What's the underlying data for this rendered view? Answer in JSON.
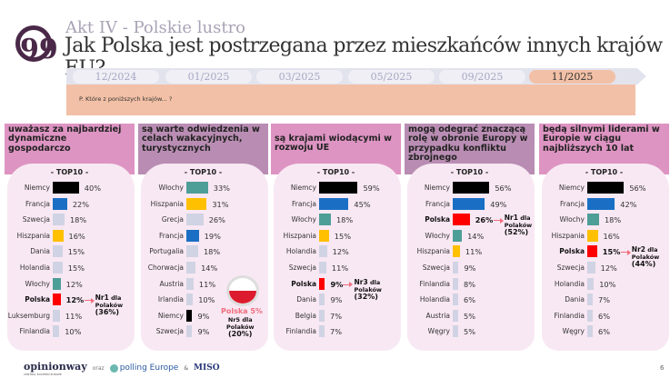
{
  "header": {
    "subtitle": "Akt IV - Polskie lustro",
    "title": "Jak Polska jest postrzegana przez mieszkańców innych krajów EU?"
  },
  "timeline": [
    "12/2024",
    "01/2025",
    "03/2025",
    "05/2025",
    "09/2025",
    "11/2025"
  ],
  "question": "P. Które z poniższych krajów... ?",
  "panels": [
    {
      "title": "uważasz za najbardziej dynamiczne gospodarczo",
      "top": "- TOP10 -",
      "rows": [
        [
          "Niemcy",
          "40%",
          40,
          "#000000"
        ],
        [
          "Francja",
          "22%",
          22,
          "#1a6fc4"
        ],
        [
          "Szwecja",
          "18%",
          18,
          "#d0d3e3"
        ],
        [
          "Hiszpania",
          "16%",
          16,
          "#ffc000"
        ],
        [
          "Dania",
          "15%",
          15,
          "#d0d3e3"
        ],
        [
          "Holandia",
          "15%",
          15,
          "#d0d3e3"
        ],
        [
          "Włochy",
          "12%",
          12,
          "#4e9e98"
        ],
        [
          "Polska",
          "12%",
          12,
          "#ff0000"
        ],
        [
          "Luksemburg",
          "11%",
          11,
          "#d0d3e3"
        ],
        [
          "Finlandia",
          "10%",
          10,
          "#d0d3e3"
        ]
      ],
      "ann": {
        "nr": "Nr1",
        "dla": "dla",
        "pol": "Polaków",
        "pct": "(36%)"
      }
    },
    {
      "title": "są warte odwiedzenia w celach wakacyjnych, turystycznych",
      "top": "- TOP10 -",
      "rows": [
        [
          "Włochy",
          "33%",
          33,
          "#4e9e98"
        ],
        [
          "Hiszpania",
          "31%",
          31,
          "#ffc000"
        ],
        [
          "Grecja",
          "26%",
          26,
          "#d0d3e3"
        ],
        [
          "Francja",
          "19%",
          19,
          "#1a6fc4"
        ],
        [
          "Portugalia",
          "18%",
          18,
          "#d0d3e3"
        ],
        [
          "Chorwacja",
          "14%",
          14,
          "#d0d3e3"
        ],
        [
          "Austria",
          "11%",
          11,
          "#d0d3e3"
        ],
        [
          "Irlandia",
          "10%",
          10,
          "#d0d3e3"
        ],
        [
          "Niemcy",
          "9%",
          9,
          "#000000"
        ],
        [
          "Szwecja",
          "9%",
          9,
          "#d0d3e3"
        ]
      ],
      "polska": "Polska 5%",
      "ann": {
        "nr": "Nr5",
        "dla": "dla",
        "pol": "Polaków",
        "pct": "(20%)"
      }
    },
    {
      "title": "są krajami wiodącymi w rozwoju UE",
      "top": "- TOP10 -",
      "rows": [
        [
          "Niemcy",
          "59%",
          59,
          "#000000"
        ],
        [
          "Francja",
          "45%",
          45,
          "#1a6fc4"
        ],
        [
          "Włochy",
          "18%",
          18,
          "#4e9e98"
        ],
        [
          "Hiszpania",
          "15%",
          15,
          "#ffc000"
        ],
        [
          "Holandia",
          "12%",
          12,
          "#d0d3e3"
        ],
        [
          "Szwecja",
          "11%",
          11,
          "#d0d3e3"
        ],
        [
          "Polska",
          "9%",
          9,
          "#ff0000"
        ],
        [
          "Dania",
          "9%",
          9,
          "#d0d3e3"
        ],
        [
          "Belgia",
          "7%",
          7,
          "#d0d3e3"
        ],
        [
          "Finlandia",
          "7%",
          7,
          "#d0d3e3"
        ]
      ],
      "ann": {
        "nr": "Nr3",
        "dla": "dla",
        "pol": "Polaków",
        "pct": "(32%)"
      }
    },
    {
      "title": "mogą odegrać znaczącą rolę w obronie Europy w przypadku konfliktu zbrojnego",
      "top": "- TOP10 -",
      "rows": [
        [
          "Niemcy",
          "56%",
          56,
          "#000000"
        ],
        [
          "Francja",
          "49%",
          49,
          "#1a6fc4"
        ],
        [
          "Polska",
          "26%",
          26,
          "#ff0000"
        ],
        [
          "Włochy",
          "14%",
          14,
          "#4e9e98"
        ],
        [
          "Hiszpania",
          "11%",
          11,
          "#ffc000"
        ],
        [
          "Szwecja",
          "9%",
          9,
          "#d0d3e3"
        ],
        [
          "Finlandia",
          "8%",
          8,
          "#d0d3e3"
        ],
        [
          "Holandia",
          "6%",
          6,
          "#d0d3e3"
        ],
        [
          "Austria",
          "5%",
          5,
          "#d0d3e3"
        ],
        [
          "Węgry",
          "5%",
          5,
          "#d0d3e3"
        ]
      ],
      "ann": {
        "nr": "Nr1",
        "dla": "dla",
        "pol": "Polaków",
        "pct": "(52%)"
      }
    },
    {
      "title": "będą silnymi liderami w Europie w ciągu najbliższych 10 lat",
      "top": "- TOP10 -",
      "rows": [
        [
          "Niemcy",
          "56%",
          56,
          "#000000"
        ],
        [
          "Francja",
          "42%",
          42,
          "#1a6fc4"
        ],
        [
          "Włochy",
          "18%",
          18,
          "#4e9e98"
        ],
        [
          "Hiszpania",
          "16%",
          16,
          "#ffc000"
        ],
        [
          "Polska",
          "15%",
          15,
          "#ff0000"
        ],
        [
          "Szwecja",
          "12%",
          12,
          "#d0d3e3"
        ],
        [
          "Holandia",
          "10%",
          10,
          "#d0d3e3"
        ],
        [
          "Dania",
          "7%",
          7,
          "#d0d3e3"
        ],
        [
          "Finlandia",
          "6%",
          6,
          "#d0d3e3"
        ],
        [
          "Węgry",
          "6%",
          6,
          "#d0d3e3"
        ]
      ],
      "ann": {
        "nr": "Nr2",
        "dla": "dla",
        "pol": "Polaków",
        "pct": "(44%)"
      }
    }
  ],
  "footer": {
    "logo1": "opinionway",
    "logo1_sub": "CENTRAL EASTERN EUROPE",
    "oraz": "oraz",
    "logo2": "polling Europe",
    "amp": "&",
    "logo3": "MISO",
    "page": "6"
  }
}
